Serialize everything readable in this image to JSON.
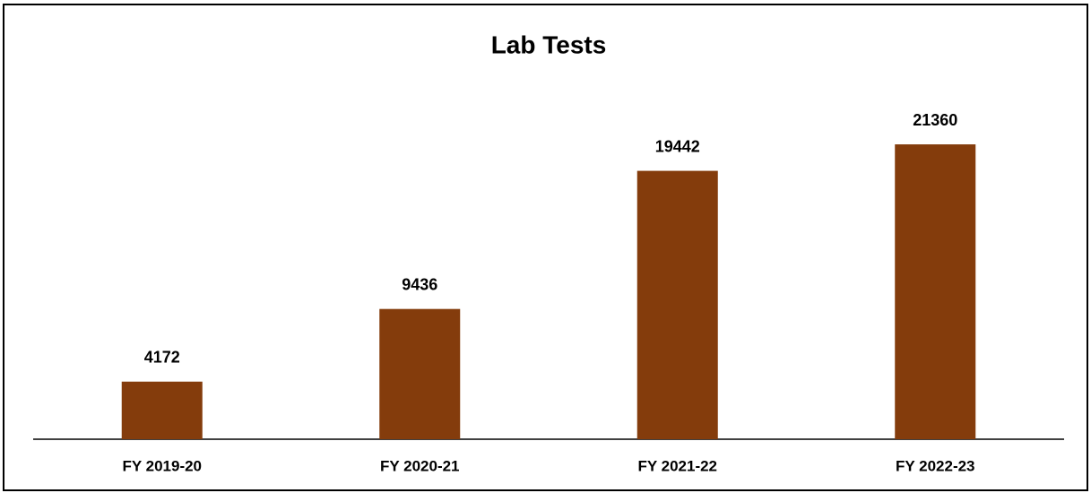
{
  "chart_data": {
    "type": "bar",
    "title": "Lab Tests",
    "categories": [
      "FY 2019-20",
      "FY 2020-21",
      "FY 2021-22",
      "FY 2022-23"
    ],
    "values": [
      4172,
      9436,
      19442,
      21360
    ],
    "color": "#843c0c",
    "ylim": [
      0,
      25000
    ]
  }
}
